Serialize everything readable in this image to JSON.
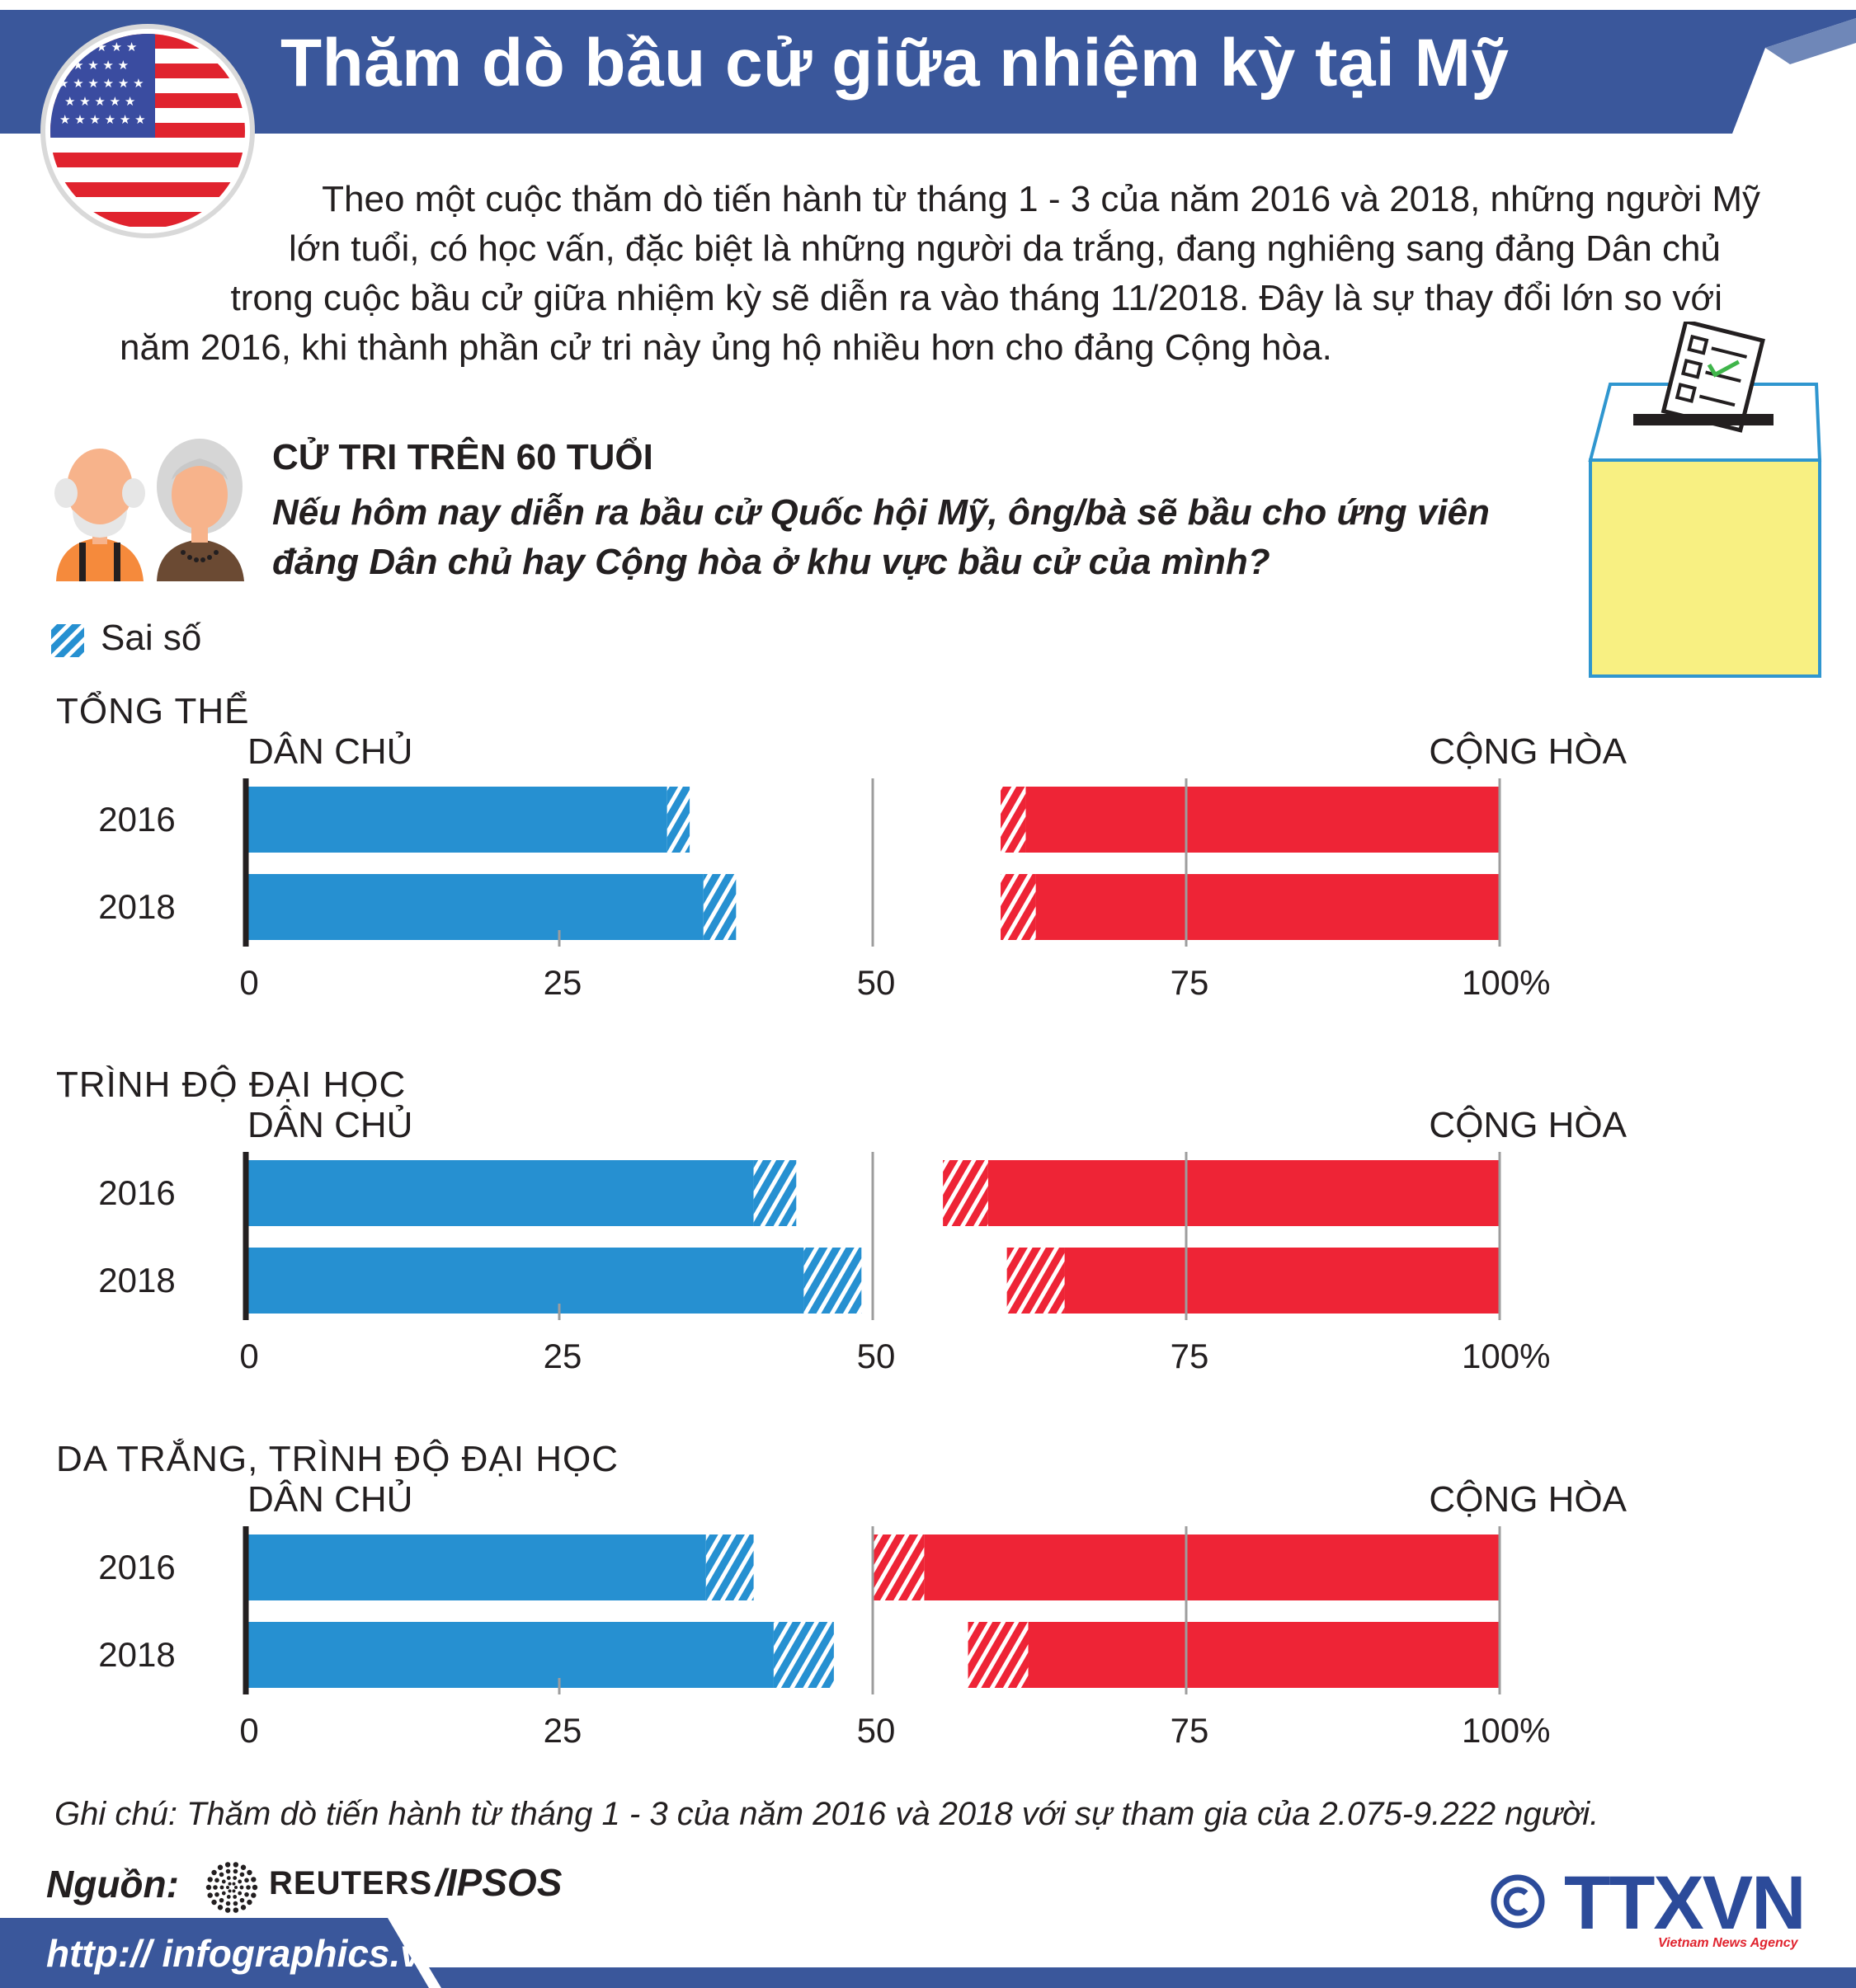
{
  "header": {
    "title": "Thăm dò bầu cử giữa nhiệm kỳ tại Mỹ"
  },
  "intro_lines": [
    "Theo một cuộc thăm dò tiến hành từ tháng 1 - 3 của năm 2016 và 2018, những người Mỹ",
    "lớn tuổi, có học vấn, đặc biệt là những người da trắng, đang nghiêng sang đảng Dân chủ",
    "trong cuộc bầu cử giữa nhiệm kỳ sẽ diễn ra vào tháng 11/2018. Đây là sự thay đổi lớn so với",
    "năm 2016, khi thành phần cử tri này ủng hộ nhiều hơn cho đảng Cộng hòa."
  ],
  "subtitle": {
    "heading": "CỬ TRI TRÊN 60 TUỔI",
    "question_line1": "Nếu hôm nay diễn ra bầu cử Quốc hội Mỹ, ông/bà sẽ bầu cho ứng viên",
    "question_line2": "đảng Dân chủ hay Cộng hòa ở khu vực bầu cử của mình?"
  },
  "legend": {
    "label": "Sai số"
  },
  "colors": {
    "header_blue": "#3a579b",
    "democrat_blue": "#2690d1",
    "republican_red": "#ee2436",
    "ballot_yellow": "#f8f082",
    "ballot_border": "#2f96cf"
  },
  "chart_data": [
    {
      "type": "bar",
      "title": "TỔNG THỂ",
      "left_label": "DÂN CHỦ",
      "right_label": "CỘNG HÒA",
      "categories": [
        "2016",
        "2018"
      ],
      "series": [
        {
          "name": "Dân chủ",
          "values": [
            34.5,
            37.8
          ],
          "margin_of_error": [
            0.9,
            1.3
          ]
        },
        {
          "name": "Cộng hòa",
          "values": [
            38.8,
            38.4
          ],
          "margin_of_error": [
            1.0,
            1.4
          ]
        }
      ],
      "xticks": [
        "0",
        "25",
        "50",
        "75",
        "100%"
      ],
      "xlim": [
        0,
        100
      ]
    },
    {
      "type": "bar",
      "title": "TRÌNH ĐỘ ĐẠI HỌC",
      "left_label": "DÂN CHỦ",
      "right_label": "CỘNG HÒA",
      "categories": [
        "2016",
        "2018"
      ],
      "series": [
        {
          "name": "Dân chủ",
          "values": [
            42.2,
            46.8
          ],
          "margin_of_error": [
            1.7,
            2.3
          ]
        },
        {
          "name": "Cộng hòa",
          "values": [
            42.6,
            37.0
          ],
          "margin_of_error": [
            1.8,
            2.3
          ]
        }
      ],
      "xticks": [
        "0",
        "25",
        "50",
        "75",
        "100%"
      ],
      "xlim": [
        0,
        100
      ]
    },
    {
      "type": "bar",
      "title": "DA TRẮNG, TRÌNH ĐỘ ĐẠI HỌC",
      "left_label": "DÂN CHỦ",
      "right_label": "CỘNG HÒA",
      "categories": [
        "2016",
        "2018"
      ],
      "series": [
        {
          "name": "Dân chủ",
          "values": [
            38.6,
            44.5
          ],
          "margin_of_error": [
            1.9,
            2.4
          ]
        },
        {
          "name": "Cộng hòa",
          "values": [
            47.9,
            40.0
          ],
          "margin_of_error": [
            2.0,
            2.4
          ]
        }
      ],
      "xticks": [
        "0",
        "25",
        "50",
        "75",
        "100%"
      ],
      "xlim": [
        0,
        100
      ]
    }
  ],
  "note": "Ghi chú: Thăm dò tiến hành từ tháng 1 - 3 của năm 2016 và 2018 với sự tham gia của 2.075-9.222 người.",
  "source": {
    "label": "Nguồn:",
    "name": "REUTERS",
    "partner": "/IPSOS"
  },
  "footer": {
    "website": "http:// infographics.vn",
    "agency_logo": "TTXVN",
    "agency_tagline": "Vietnam News Agency"
  }
}
